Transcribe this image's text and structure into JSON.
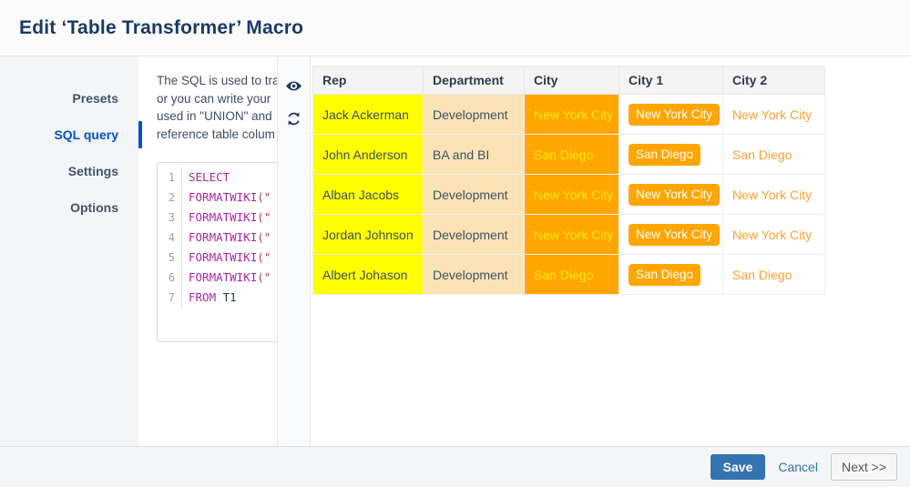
{
  "dialog": {
    "title": "Edit ‘Table Transformer’ Macro"
  },
  "sidebar": {
    "tabs": [
      {
        "label": "Presets",
        "slug": "presets",
        "active": false
      },
      {
        "label": "SQL query",
        "slug": "sql-query",
        "active": true
      },
      {
        "label": "Settings",
        "slug": "settings",
        "active": false
      },
      {
        "label": "Options",
        "slug": "options",
        "active": false
      }
    ]
  },
  "editor_panel": {
    "description_lines": [
      "The SQL is used to tra",
      "or you can write your",
      "used in \"UNION\" and",
      "reference table colum"
    ],
    "sql_lines": [
      {
        "num": "1",
        "tokens": [
          {
            "t": "SELECT",
            "c": "kw"
          }
        ]
      },
      {
        "num": "2",
        "tokens": [
          {
            "t": "FORMATWIKI",
            "c": "kw"
          },
          {
            "t": "(\"",
            "c": "str"
          }
        ]
      },
      {
        "num": "3",
        "tokens": [
          {
            "t": "FORMATWIKI",
            "c": "kw"
          },
          {
            "t": "(\"",
            "c": "str"
          }
        ]
      },
      {
        "num": "4",
        "tokens": [
          {
            "t": "FORMATWIKI",
            "c": "kw"
          },
          {
            "t": "(\"",
            "c": "str"
          }
        ]
      },
      {
        "num": "5",
        "tokens": [
          {
            "t": "FORMATWIKI",
            "c": "kw"
          },
          {
            "t": "(\"",
            "c": "str"
          }
        ]
      },
      {
        "num": "6",
        "tokens": [
          {
            "t": "FORMATWIKI",
            "c": "kw"
          },
          {
            "t": "(\"",
            "c": "str"
          }
        ]
      },
      {
        "num": "7",
        "tokens": [
          {
            "t": "FROM",
            "c": "kw"
          },
          {
            "t": " T1",
            "c": "id"
          }
        ]
      }
    ]
  },
  "toolbar": {
    "icons": {
      "preview_toggle": "eye-icon",
      "refresh_preview": "refresh-icon"
    }
  },
  "preview_table": {
    "columns": [
      {
        "label": "Rep",
        "slug": "rep"
      },
      {
        "label": "Department",
        "slug": "department"
      },
      {
        "label": "City",
        "slug": "city"
      },
      {
        "label": "City 1",
        "slug": "city-1"
      },
      {
        "label": "City 2",
        "slug": "city-2"
      }
    ],
    "rows": [
      {
        "rep": "Jack Ackerman",
        "department": "Development",
        "city": "New York City",
        "city1": "New York City",
        "city2": "New York City"
      },
      {
        "rep": "John Anderson",
        "department": "BA and BI",
        "city": "San Diego",
        "city1": "San Diego",
        "city2": "San Diego"
      },
      {
        "rep": "Alban Jacobs",
        "department": "Development",
        "city": "New York City",
        "city1": "New York City",
        "city2": "New York City"
      },
      {
        "rep": "Jordan Johnson",
        "department": "Development",
        "city": "New York City",
        "city1": "New York City",
        "city2": "New York City"
      },
      {
        "rep": "Albert Johason",
        "department": "Development",
        "city": "San Diego",
        "city1": "San Diego",
        "city2": "San Diego"
      }
    ]
  },
  "footer": {
    "save_label": "Save",
    "cancel_label": "Cancel",
    "next_label": "Next >>"
  },
  "colors": {
    "accent": "#0052cc",
    "saveBlue": "#3572b0",
    "yellow": "#ffff00",
    "wheat": "#fbe3b5",
    "orange": "#ffa602",
    "orangeText": "#ffa033",
    "cityText": "#ffe800"
  }
}
